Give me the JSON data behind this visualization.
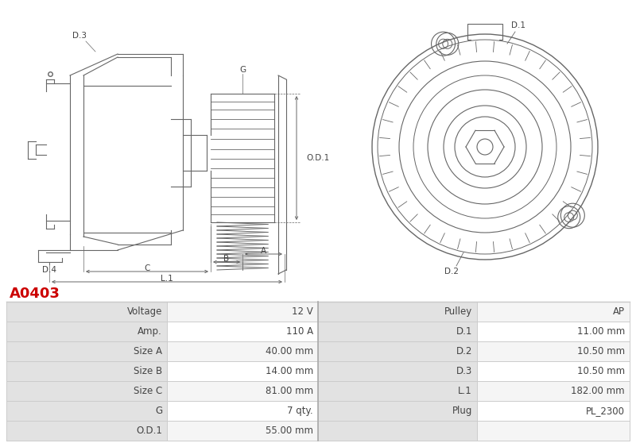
{
  "title": "A0403",
  "title_color": "#cc0000",
  "bg_color": "#ffffff",
  "table_rows": [
    [
      "Voltage",
      "12 V",
      "Pulley",
      "AP"
    ],
    [
      "Amp.",
      "110 A",
      "D.1",
      "11.00 mm"
    ],
    [
      "Size A",
      "40.00 mm",
      "D.2",
      "10.50 mm"
    ],
    [
      "Size B",
      "14.00 mm",
      "D.3",
      "10.50 mm"
    ],
    [
      "Size C",
      "81.00 mm",
      "L.1",
      "182.00 mm"
    ],
    [
      "G",
      "7 qty.",
      "Plug",
      "PL_2300"
    ],
    [
      "O.D.1",
      "55.00 mm",
      "",
      ""
    ]
  ],
  "header_bg": "#e2e2e2",
  "row_bg_even": "#f5f5f5",
  "row_bg_odd": "#ffffff",
  "line_color": "#cccccc",
  "text_color": "#444444",
  "diagram_line_color": "#666666",
  "dim_color": "#666666"
}
